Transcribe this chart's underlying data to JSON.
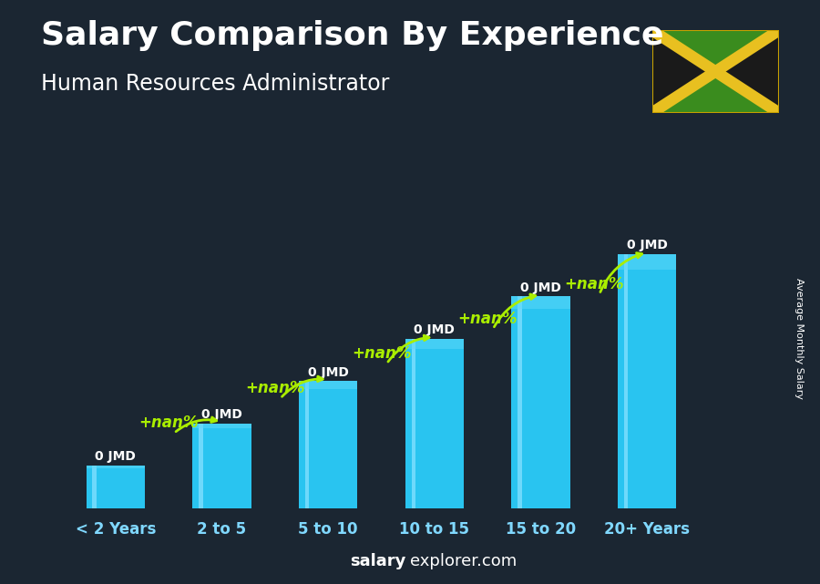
{
  "title": "Salary Comparison By Experience",
  "subtitle": "Human Resources Administrator",
  "categories": [
    "< 2 Years",
    "2 to 5",
    "5 to 10",
    "10 to 15",
    "15 to 20",
    "20+ Years"
  ],
  "values": [
    1,
    2,
    3,
    4,
    5,
    6
  ],
  "bar_color": "#29c4f0",
  "bar_color_light": "#80dfff",
  "bar_label": "0 JMD",
  "increase_label": "+nan%",
  "ylabel_rotated": "Average Monthly Salary",
  "footer_bold": "salary",
  "footer_normal": "explorer.com",
  "background_dark": "#1a2530",
  "background_mid": "#2a3a4a",
  "title_color": "#ffffff",
  "subtitle_color": "#ffffff",
  "bar_text_color": "#ffffff",
  "green_color": "#aaee00",
  "arrow_color": "#aaee00",
  "title_fontsize": 26,
  "subtitle_fontsize": 17,
  "bar_width": 0.55,
  "flag_green": "#3a8c1e",
  "flag_black": "#1a1a1a",
  "flag_gold": "#e8c020"
}
